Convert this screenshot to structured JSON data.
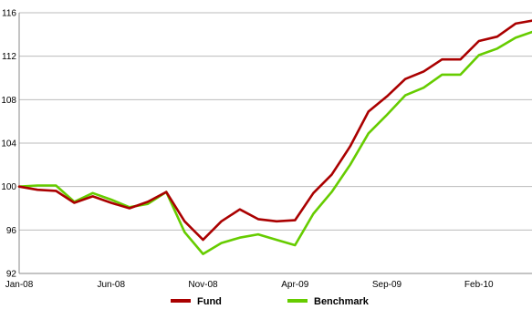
{
  "chart_data": {
    "type": "line",
    "title": "",
    "xlabel": "",
    "ylabel": "",
    "x": [
      "Jan-08",
      "Feb-08",
      "Mar-08",
      "Apr-08",
      "May-08",
      "Jun-08",
      "Jul-08",
      "Aug-08",
      "Sep-08",
      "Oct-08",
      "Nov-08",
      "Dec-08",
      "Jan-09",
      "Feb-09",
      "Mar-09",
      "Apr-09",
      "May-09",
      "Jun-09",
      "Jul-09",
      "Aug-09",
      "Sep-09",
      "Oct-09",
      "Nov-09",
      "Dec-09",
      "Jan-10",
      "Feb-10",
      "Mar-10",
      "Apr-10",
      "May-10",
      "Jun-10"
    ],
    "x_tick_labels": [
      "Jan-08",
      "Jun-08",
      "Nov-08",
      "Apr-09",
      "Sep-09",
      "Feb-10"
    ],
    "ylim": [
      92,
      116
    ],
    "y_ticks": [
      92,
      96,
      100,
      104,
      108,
      112,
      116
    ],
    "grid": "horizontal",
    "legend": "bottom",
    "series": [
      {
        "name": "Fund",
        "color": "#aa0000",
        "values": [
          100.0,
          99.7,
          99.6,
          98.5,
          99.1,
          98.5,
          98.0,
          98.6,
          99.5,
          96.8,
          95.1,
          96.8,
          97.9,
          97.0,
          96.8,
          96.9,
          99.4,
          101.1,
          103.7,
          106.9,
          108.3,
          109.9,
          110.6,
          111.7,
          111.7,
          113.4,
          113.8,
          115.0,
          115.3,
          115.2
        ]
      },
      {
        "name": "Benchmark",
        "color": "#66cc00",
        "values": [
          100.0,
          100.1,
          100.1,
          98.6,
          99.4,
          98.8,
          98.1,
          98.4,
          99.5,
          95.8,
          93.8,
          94.8,
          95.3,
          95.6,
          95.1,
          94.6,
          97.5,
          99.5,
          102.0,
          104.9,
          106.6,
          108.4,
          109.1,
          110.3,
          110.3,
          112.1,
          112.7,
          113.7,
          114.3,
          114.3
        ]
      }
    ]
  }
}
